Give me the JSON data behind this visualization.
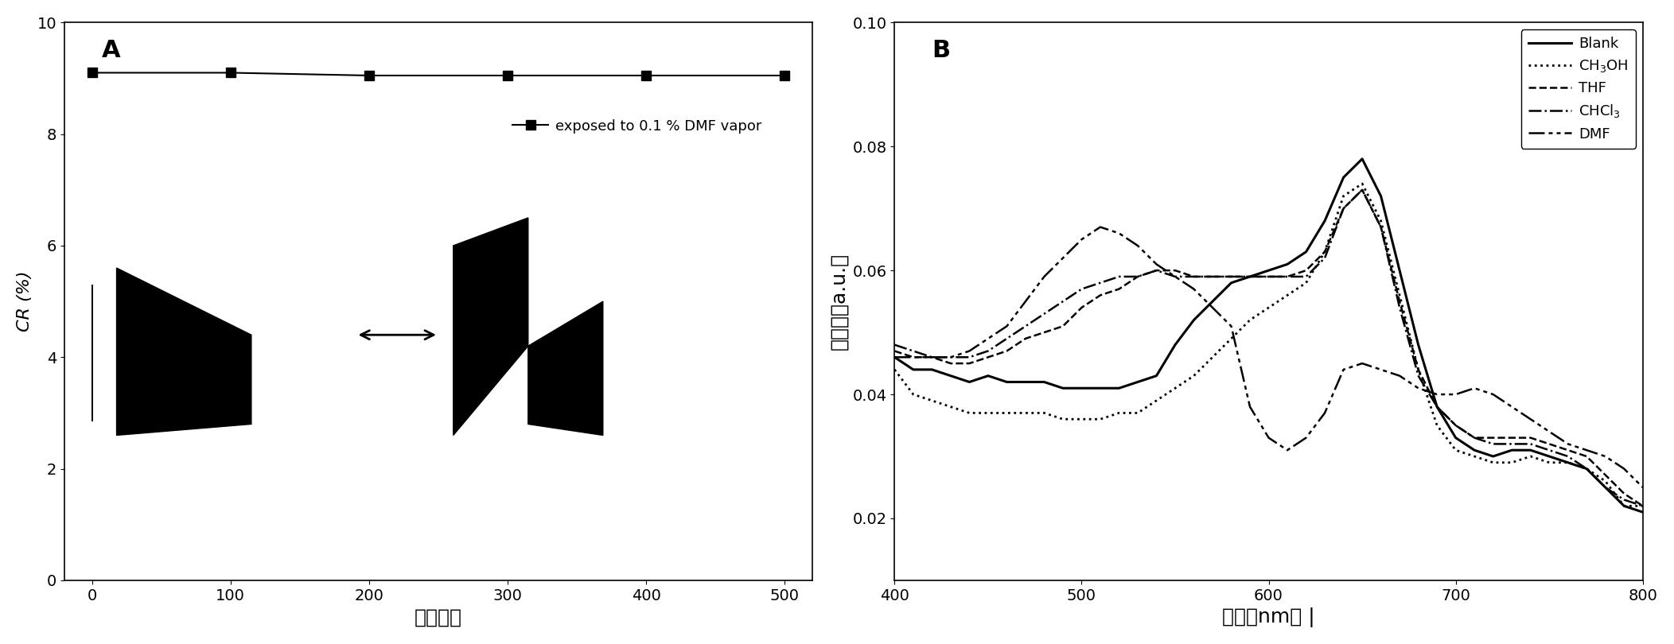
{
  "panel_A": {
    "label": "A",
    "x_data": [
      0,
      100,
      200,
      300,
      400,
      500
    ],
    "y_data": [
      9.1,
      9.1,
      9.05,
      9.05,
      9.05,
      9.05
    ],
    "xlabel": "弯曲次数",
    "ylabel": "CR (%)",
    "xlim": [
      -20,
      520
    ],
    "ylim": [
      0,
      10
    ],
    "yticks": [
      0,
      2,
      4,
      6,
      8,
      10
    ],
    "xticks": [
      0,
      100,
      200,
      300,
      400,
      500
    ],
    "legend_label": "exposed to 0.1 % DMF vapor",
    "line_color": "black",
    "marker": "s"
  },
  "panel_B": {
    "label": "B",
    "xlabel": "波长（nm）",
    "ylabel": "吸光度（a.u.）",
    "xlim": [
      400,
      800
    ],
    "ylim": [
      0.01,
      0.1
    ],
    "yticks": [
      0.02,
      0.04,
      0.06,
      0.08,
      0.1
    ],
    "xticks": [
      400,
      500,
      600,
      700,
      800
    ],
    "series": {
      "Blank": {
        "linestyle": "-",
        "linewidth": 2.0,
        "color": "black",
        "x": [
          400,
          410,
          420,
          430,
          440,
          450,
          460,
          470,
          480,
          490,
          500,
          510,
          520,
          530,
          540,
          550,
          560,
          570,
          580,
          590,
          600,
          610,
          620,
          630,
          640,
          650,
          660,
          670,
          680,
          690,
          700,
          710,
          720,
          730,
          740,
          750,
          760,
          770,
          780,
          790,
          800
        ],
        "y": [
          0.046,
          0.044,
          0.044,
          0.043,
          0.042,
          0.043,
          0.042,
          0.042,
          0.042,
          0.041,
          0.041,
          0.041,
          0.041,
          0.042,
          0.043,
          0.048,
          0.052,
          0.055,
          0.058,
          0.059,
          0.06,
          0.061,
          0.063,
          0.068,
          0.075,
          0.078,
          0.072,
          0.06,
          0.048,
          0.038,
          0.033,
          0.031,
          0.03,
          0.031,
          0.031,
          0.03,
          0.029,
          0.028,
          0.025,
          0.022,
          0.021
        ]
      },
      "CH3OH": {
        "linestyle": ":",
        "linewidth": 1.5,
        "color": "black",
        "x": [
          400,
          410,
          420,
          430,
          440,
          450,
          460,
          470,
          480,
          490,
          500,
          510,
          520,
          530,
          540,
          550,
          560,
          570,
          580,
          590,
          600,
          610,
          620,
          630,
          640,
          650,
          660,
          670,
          680,
          690,
          700,
          710,
          720,
          730,
          740,
          750,
          760,
          770,
          780,
          790,
          800
        ],
        "y": [
          0.044,
          0.04,
          0.039,
          0.038,
          0.037,
          0.037,
          0.037,
          0.037,
          0.037,
          0.036,
          0.036,
          0.036,
          0.037,
          0.037,
          0.039,
          0.041,
          0.043,
          0.046,
          0.049,
          0.052,
          0.054,
          0.056,
          0.058,
          0.063,
          0.072,
          0.074,
          0.068,
          0.056,
          0.044,
          0.035,
          0.031,
          0.03,
          0.029,
          0.029,
          0.03,
          0.029,
          0.029,
          0.028,
          0.026,
          0.022,
          0.022
        ]
      },
      "THF": {
        "linestyle": "--",
        "linewidth": 1.5,
        "color": "black",
        "x": [
          400,
          410,
          420,
          430,
          440,
          450,
          460,
          470,
          480,
          490,
          500,
          510,
          520,
          530,
          540,
          550,
          560,
          570,
          580,
          590,
          600,
          610,
          620,
          630,
          640,
          650,
          660,
          670,
          680,
          690,
          700,
          710,
          720,
          730,
          740,
          750,
          760,
          770,
          780,
          790,
          800
        ],
        "y": [
          0.047,
          0.046,
          0.046,
          0.045,
          0.045,
          0.046,
          0.047,
          0.049,
          0.05,
          0.051,
          0.054,
          0.056,
          0.057,
          0.059,
          0.06,
          0.06,
          0.059,
          0.059,
          0.059,
          0.059,
          0.059,
          0.059,
          0.06,
          0.063,
          0.07,
          0.073,
          0.067,
          0.055,
          0.044,
          0.038,
          0.035,
          0.033,
          0.033,
          0.033,
          0.033,
          0.032,
          0.031,
          0.03,
          0.027,
          0.024,
          0.022
        ]
      },
      "CHCl3": {
        "linestyle": "-.",
        "linewidth": 1.5,
        "color": "black",
        "x": [
          400,
          410,
          420,
          430,
          440,
          450,
          460,
          470,
          480,
          490,
          500,
          510,
          520,
          530,
          540,
          550,
          560,
          570,
          580,
          590,
          600,
          610,
          620,
          630,
          640,
          650,
          660,
          670,
          680,
          690,
          700,
          710,
          720,
          730,
          740,
          750,
          760,
          770,
          780,
          790,
          800
        ],
        "y": [
          0.048,
          0.047,
          0.046,
          0.046,
          0.046,
          0.047,
          0.049,
          0.051,
          0.053,
          0.055,
          0.057,
          0.058,
          0.059,
          0.059,
          0.06,
          0.059,
          0.059,
          0.059,
          0.059,
          0.059,
          0.059,
          0.059,
          0.059,
          0.062,
          0.07,
          0.073,
          0.067,
          0.054,
          0.043,
          0.038,
          0.035,
          0.033,
          0.032,
          0.032,
          0.032,
          0.031,
          0.03,
          0.028,
          0.025,
          0.023,
          0.022
        ]
      },
      "DMF": {
        "linestyle": "-.",
        "linewidth": 1.5,
        "color": "black",
        "dashes": [
          8,
          3,
          2,
          3,
          2,
          3
        ],
        "x": [
          400,
          410,
          420,
          430,
          440,
          450,
          460,
          470,
          480,
          490,
          500,
          510,
          520,
          530,
          540,
          550,
          560,
          570,
          580,
          590,
          600,
          610,
          620,
          630,
          640,
          650,
          660,
          670,
          680,
          690,
          700,
          710,
          720,
          730,
          740,
          750,
          760,
          770,
          780,
          790,
          800
        ],
        "y": [
          0.046,
          0.046,
          0.046,
          0.046,
          0.047,
          0.049,
          0.051,
          0.055,
          0.059,
          0.062,
          0.065,
          0.067,
          0.066,
          0.064,
          0.061,
          0.059,
          0.057,
          0.054,
          0.051,
          0.038,
          0.033,
          0.031,
          0.033,
          0.037,
          0.044,
          0.045,
          0.044,
          0.043,
          0.041,
          0.04,
          0.04,
          0.041,
          0.04,
          0.038,
          0.036,
          0.034,
          0.032,
          0.031,
          0.03,
          0.028,
          0.025
        ]
      }
    }
  },
  "background_color": "white",
  "text_color": "black"
}
